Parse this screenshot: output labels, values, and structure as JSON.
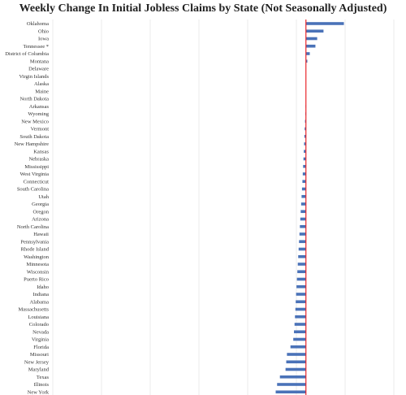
{
  "chart_data": {
    "type": "bar",
    "orientation": "horizontal",
    "title": "Weekly Change In Initial Jobless Claims by State (Not Seasonally Adjusted)",
    "categories": [
      "Oklahoma",
      "Ohio",
      "Iowa",
      "Tennessee *",
      "District of Columbia",
      "Montana",
      "Delaware",
      "Virgin Islands",
      "Alaska",
      "Maine",
      "North Dakota",
      "Arkansas",
      "Wyoming",
      "New Mexico",
      "Vermont",
      "South Dakota",
      "New Hampshire",
      "Kansas",
      "Nebraska",
      "Mississippi",
      "West Virginia",
      "Connecticut",
      "South Carolina",
      "Utah",
      "Georgia",
      "Oregon",
      "Arizona",
      "North Carolina",
      "Hawaii",
      "Pennsylvania",
      "Rhode Island",
      "Washington",
      "Minnesota",
      "Wisconsin",
      "Puerto Rico",
      "Idaho",
      "Indiana",
      "Alabama",
      "Massachusetts",
      "Louisiana",
      "Colorado",
      "Nevada",
      "Virginia",
      "Florida",
      "Missouri",
      "New Jersey",
      "Maryland",
      "Texas",
      "Illinois",
      "New York"
    ],
    "values": [
      5400,
      2500,
      1600,
      1350,
      550,
      200,
      0,
      0,
      0,
      0,
      0,
      -50,
      -80,
      -130,
      -180,
      -220,
      -260,
      -300,
      -350,
      -400,
      -450,
      -500,
      -560,
      -620,
      -680,
      -740,
      -800,
      -860,
      -920,
      -980,
      -1040,
      -1100,
      -1160,
      -1220,
      -1280,
      -1340,
      -1400,
      -1450,
      -1500,
      -1560,
      -1620,
      -1700,
      -1800,
      -2200,
      -2700,
      -2800,
      -2900,
      -3700,
      -4100,
      -4300
    ],
    "xlim": [
      -36000,
      12500
    ],
    "grid": true,
    "bar_color": "#4a72b8",
    "zero_line_color": "#e8262b",
    "grid_color": "#e6e6e6"
  }
}
